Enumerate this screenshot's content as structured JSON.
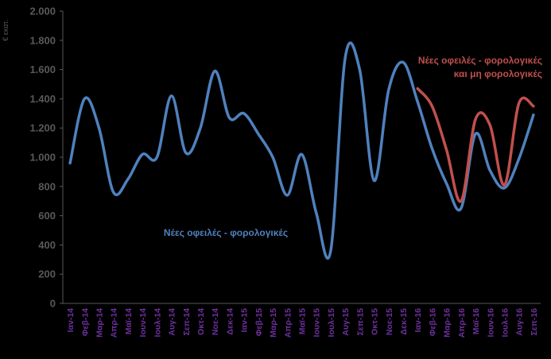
{
  "chart_data": {
    "type": "line",
    "ylabel": "€ εκατ.",
    "ylim": [
      0,
      2000
    ],
    "yticks": [
      0,
      200,
      400,
      600,
      800,
      1000,
      1200,
      1400,
      1600,
      1800,
      2000
    ],
    "ytick_labels": [
      "0",
      "200",
      "400",
      "600",
      "800",
      "1.000",
      "1.200",
      "1.400",
      "1.600",
      "1.800",
      "2.000"
    ],
    "grid": false,
    "x_tick_labels": [
      "Ιαν-14",
      "Φεβ-14",
      "Μαρ-14",
      "Απρ-14",
      "Μαϊ-14",
      "Ιουν-14",
      "Ιουλ-14",
      "Αυγ-14",
      "Σεπ-14",
      "Οκτ-14",
      "Νοε-14",
      "Δεκ-14",
      "Ιαν-15",
      "Φεβ-15",
      "Μαρ-15",
      "Απρ-15",
      "Μαϊ-15",
      "Ιουν-15",
      "Ιουλ-15",
      "Αυγ-15",
      "Σεπ-15",
      "Οκτ-15",
      "Νοε-15",
      "Δεκ-15",
      "Ιαν-16",
      "Φεβ-16",
      "Μαρ-16",
      "Απρ-16",
      "Μαϊ-16",
      "Ιουν-16",
      "Ιουλ-16",
      "Αυγ-16",
      "Σεπ-16"
    ],
    "series": [
      {
        "name": "Νέες οφειλές - φορολογικές",
        "color": "#4f81bd",
        "x_start": 0,
        "values": [
          960,
          1400,
          1200,
          760,
          850,
          1020,
          1000,
          1420,
          1030,
          1200,
          1590,
          1270,
          1300,
          1160,
          1000,
          740,
          1020,
          620,
          360,
          1680,
          1600,
          840,
          1460,
          1650,
          1380,
          1060,
          820,
          650,
          1160,
          910,
          790,
          990,
          1290
        ]
      },
      {
        "name": "Νέες οφειλές - φορολογικές και μη φορολογικές",
        "color": "#c0504d",
        "x_start": 24,
        "values": [
          1470,
          1350,
          1050,
          700,
          1260,
          1220,
          810,
          1370,
          1350
        ]
      }
    ],
    "annotations": [
      {
        "text": "Νέες οφειλές - φορολογικές",
        "color": "#4f81bd"
      },
      {
        "text_line1": "Νέες οφειλές - φορολογικές",
        "text_line2": "και μη φορολογικές",
        "color": "#c0504d"
      }
    ]
  }
}
